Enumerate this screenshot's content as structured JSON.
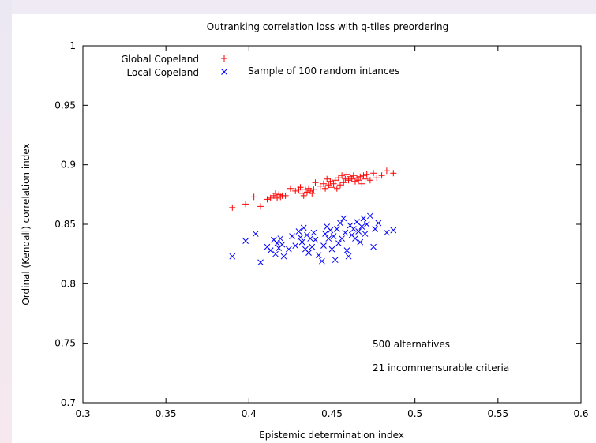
{
  "chart_data": {
    "type": "scatter",
    "title": "Outranking correlation loss with q-tiles preordering",
    "xlabel": "Epistemic determination index",
    "ylabel": "Ordinal (Kendall) correlation index",
    "xlim": [
      0.3,
      0.6
    ],
    "ylim": [
      0.7,
      1.0
    ],
    "xticks": [
      {
        "value": 0.3,
        "label": "0.3"
      },
      {
        "value": 0.35,
        "label": "0.35"
      },
      {
        "value": 0.4,
        "label": "0.4"
      },
      {
        "value": 0.45,
        "label": "0.45"
      },
      {
        "value": 0.5,
        "label": "0.5"
      },
      {
        "value": 0.55,
        "label": "0.55"
      },
      {
        "value": 0.6,
        "label": "0.6"
      }
    ],
    "yticks": [
      {
        "value": 0.7,
        "label": "0.7"
      },
      {
        "value": 0.75,
        "label": "0.75"
      },
      {
        "value": 0.8,
        "label": "0.8"
      },
      {
        "value": 0.85,
        "label": "0.85"
      },
      {
        "value": 0.9,
        "label": "0.9"
      },
      {
        "value": 0.95,
        "label": "0.95"
      },
      {
        "value": 1.0,
        "label": "1"
      }
    ],
    "grid": false,
    "legend_position": "top-left",
    "legend_note": "Sample of 100 random intances",
    "annotations": [
      "500 alternatives",
      "21 incommensurable criteria"
    ],
    "series": [
      {
        "name": "Global Copeland",
        "marker": "plus",
        "color": "#ff0000",
        "points": [
          [
            0.39,
            0.864
          ],
          [
            0.398,
            0.867
          ],
          [
            0.403,
            0.873
          ],
          [
            0.407,
            0.865
          ],
          [
            0.411,
            0.871
          ],
          [
            0.413,
            0.872
          ],
          [
            0.415,
            0.874
          ],
          [
            0.416,
            0.876
          ],
          [
            0.417,
            0.872
          ],
          [
            0.418,
            0.875
          ],
          [
            0.419,
            0.873
          ],
          [
            0.42,
            0.874
          ],
          [
            0.422,
            0.874
          ],
          [
            0.425,
            0.88
          ],
          [
            0.428,
            0.878
          ],
          [
            0.43,
            0.879
          ],
          [
            0.431,
            0.881
          ],
          [
            0.432,
            0.876
          ],
          [
            0.433,
            0.874
          ],
          [
            0.434,
            0.879
          ],
          [
            0.435,
            0.877
          ],
          [
            0.436,
            0.88
          ],
          [
            0.437,
            0.878
          ],
          [
            0.438,
            0.876
          ],
          [
            0.439,
            0.879
          ],
          [
            0.44,
            0.885
          ],
          [
            0.443,
            0.882
          ],
          [
            0.445,
            0.884
          ],
          [
            0.446,
            0.88
          ],
          [
            0.447,
            0.888
          ],
          [
            0.448,
            0.883
          ],
          [
            0.449,
            0.886
          ],
          [
            0.45,
            0.881
          ],
          [
            0.451,
            0.884
          ],
          [
            0.452,
            0.887
          ],
          [
            0.453,
            0.88
          ],
          [
            0.454,
            0.889
          ],
          [
            0.455,
            0.883
          ],
          [
            0.456,
            0.891
          ],
          [
            0.457,
            0.885
          ],
          [
            0.458,
            0.888
          ],
          [
            0.459,
            0.892
          ],
          [
            0.46,
            0.887
          ],
          [
            0.461,
            0.89
          ],
          [
            0.462,
            0.888
          ],
          [
            0.463,
            0.891
          ],
          [
            0.464,
            0.886
          ],
          [
            0.465,
            0.889
          ],
          [
            0.466,
            0.887
          ],
          [
            0.467,
            0.89
          ],
          [
            0.468,
            0.884
          ],
          [
            0.469,
            0.891
          ],
          [
            0.47,
            0.888
          ],
          [
            0.471,
            0.892
          ],
          [
            0.473,
            0.887
          ],
          [
            0.475,
            0.893
          ],
          [
            0.477,
            0.889
          ],
          [
            0.48,
            0.891
          ],
          [
            0.483,
            0.895
          ],
          [
            0.487,
            0.893
          ]
        ]
      },
      {
        "name": "Local Copeland",
        "marker": "cross",
        "color": "#0000ff",
        "points": [
          [
            0.39,
            0.823
          ],
          [
            0.398,
            0.836
          ],
          [
            0.404,
            0.842
          ],
          [
            0.407,
            0.818
          ],
          [
            0.411,
            0.831
          ],
          [
            0.413,
            0.828
          ],
          [
            0.415,
            0.837
          ],
          [
            0.416,
            0.825
          ],
          [
            0.417,
            0.834
          ],
          [
            0.418,
            0.83
          ],
          [
            0.419,
            0.838
          ],
          [
            0.42,
            0.833
          ],
          [
            0.421,
            0.823
          ],
          [
            0.424,
            0.829
          ],
          [
            0.426,
            0.84
          ],
          [
            0.428,
            0.832
          ],
          [
            0.43,
            0.844
          ],
          [
            0.431,
            0.839
          ],
          [
            0.432,
            0.835
          ],
          [
            0.433,
            0.847
          ],
          [
            0.434,
            0.829
          ],
          [
            0.435,
            0.841
          ],
          [
            0.436,
            0.826
          ],
          [
            0.437,
            0.838
          ],
          [
            0.438,
            0.831
          ],
          [
            0.439,
            0.843
          ],
          [
            0.44,
            0.837
          ],
          [
            0.442,
            0.824
          ],
          [
            0.444,
            0.819
          ],
          [
            0.445,
            0.832
          ],
          [
            0.446,
            0.842
          ],
          [
            0.447,
            0.848
          ],
          [
            0.448,
            0.838
          ],
          [
            0.449,
            0.845
          ],
          [
            0.45,
            0.829
          ],
          [
            0.451,
            0.84
          ],
          [
            0.452,
            0.82
          ],
          [
            0.453,
            0.846
          ],
          [
            0.454,
            0.834
          ],
          [
            0.455,
            0.851
          ],
          [
            0.456,
            0.838
          ],
          [
            0.457,
            0.855
          ],
          [
            0.458,
            0.843
          ],
          [
            0.459,
            0.828
          ],
          [
            0.46,
            0.823
          ],
          [
            0.461,
            0.849
          ],
          [
            0.462,
            0.841
          ],
          [
            0.463,
            0.846
          ],
          [
            0.464,
            0.838
          ],
          [
            0.465,
            0.852
          ],
          [
            0.466,
            0.844
          ],
          [
            0.467,
            0.835
          ],
          [
            0.468,
            0.848
          ],
          [
            0.469,
            0.855
          ],
          [
            0.47,
            0.842
          ],
          [
            0.471,
            0.85
          ],
          [
            0.473,
            0.857
          ],
          [
            0.475,
            0.831
          ],
          [
            0.476,
            0.846
          ],
          [
            0.478,
            0.851
          ],
          [
            0.483,
            0.843
          ],
          [
            0.487,
            0.845
          ]
        ]
      }
    ]
  }
}
